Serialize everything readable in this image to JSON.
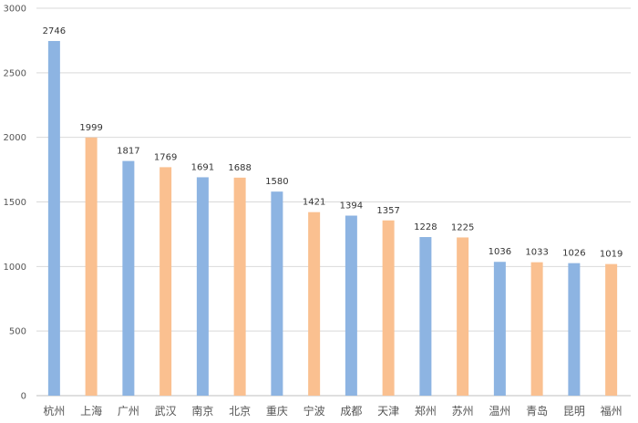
{
  "chart_data": {
    "type": "bar",
    "categories": [
      "杭州",
      "上海",
      "广州",
      "武汉",
      "南京",
      "北京",
      "重庆",
      "宁波",
      "成都",
      "天津",
      "郑州",
      "苏州",
      "温州",
      "青岛",
      "昆明",
      "福州"
    ],
    "values": [
      2746,
      1999,
      1817,
      1769,
      1691,
      1688,
      1580,
      1421,
      1394,
      1357,
      1228,
      1225,
      1036,
      1033,
      1026,
      1019
    ],
    "title": "",
    "xlabel": "",
    "ylabel": "",
    "ylim": [
      0,
      3000
    ],
    "yticks": [
      0,
      500,
      1000,
      1500,
      2000,
      2500,
      3000
    ],
    "grid": "horizontal",
    "legend": "none",
    "colors": [
      "#8db4e2",
      "#fac090"
    ]
  }
}
